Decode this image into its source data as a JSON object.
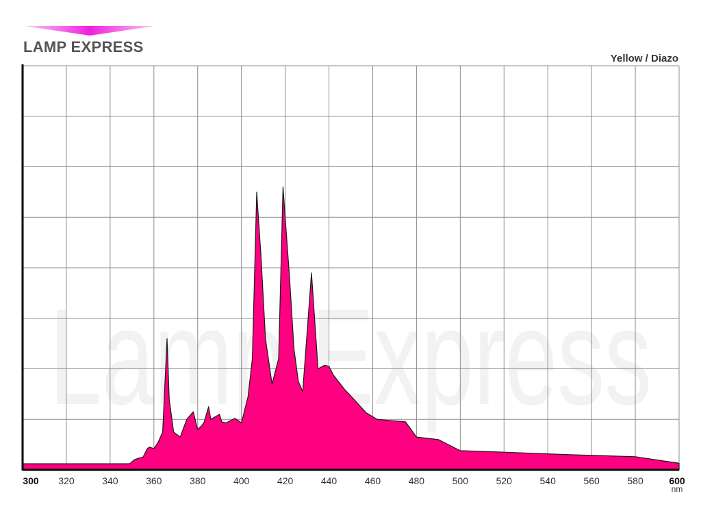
{
  "header": {
    "brand": "LAMP EXPRESS",
    "lamp_type": "Yellow / Diazo",
    "watermark": "Lamp Express"
  },
  "colors": {
    "fill": "#ff0080",
    "outline": "#1a1a1a",
    "grid": "#8c8c8c",
    "logo_accent": "#ee22dd",
    "watermark": "#f2f2f2"
  },
  "chart_data": {
    "type": "area",
    "title": "Yellow / Diazo",
    "xlabel": "nm",
    "ylabel": "",
    "xlim": [
      300,
      600
    ],
    "ylim": [
      0,
      8
    ],
    "grid": true,
    "x_ticks": [
      300,
      320,
      340,
      360,
      380,
      400,
      420,
      440,
      460,
      480,
      500,
      520,
      540,
      560,
      580,
      600
    ],
    "y_ticks": [
      0,
      1,
      2,
      3,
      4,
      5,
      6,
      7,
      8
    ],
    "show_y_labels": false,
    "series": [
      {
        "x": [
          300,
          349,
          351,
          353,
          355,
          357,
          358,
          360,
          362,
          364,
          366,
          367,
          369,
          372,
          375,
          378,
          380,
          382,
          383,
          385,
          386,
          390,
          391,
          393,
          397,
          400,
          403,
          405,
          407,
          409,
          411,
          414,
          417,
          419,
          422,
          424,
          426,
          428,
          432,
          435,
          438,
          440,
          442,
          447,
          452,
          457,
          462,
          475,
          480,
          490,
          500,
          520,
          550,
          580,
          600
        ],
        "values": [
          0.12,
          0.12,
          0.2,
          0.23,
          0.25,
          0.42,
          0.45,
          0.42,
          0.55,
          0.75,
          2.6,
          1.4,
          0.75,
          0.65,
          1.0,
          1.15,
          0.8,
          0.88,
          0.95,
          1.25,
          1.0,
          1.1,
          0.95,
          0.93,
          1.02,
          0.93,
          1.45,
          2.2,
          5.5,
          4.2,
          2.6,
          1.7,
          2.2,
          5.6,
          3.8,
          2.4,
          1.75,
          1.55,
          3.9,
          2.0,
          2.07,
          2.05,
          1.88,
          1.6,
          1.37,
          1.13,
          1.0,
          0.95,
          0.65,
          0.6,
          0.38,
          0.35,
          0.3,
          0.26,
          0.13
        ]
      }
    ]
  }
}
